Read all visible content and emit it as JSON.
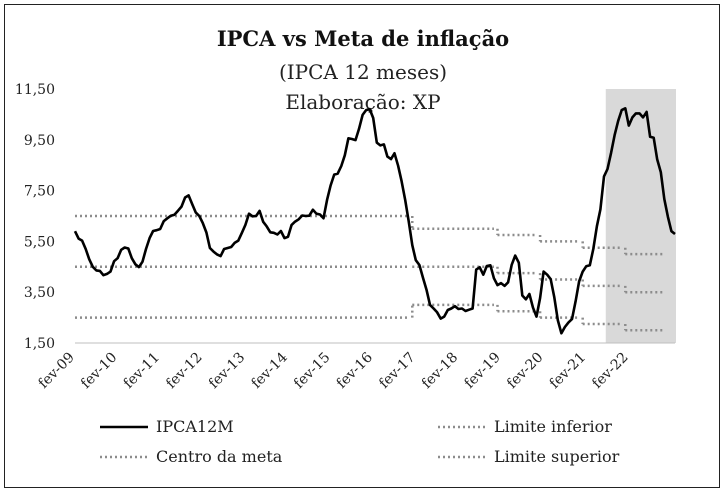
{
  "chart_data": {
    "type": "line",
    "title": "IPCA vs Meta de inflação",
    "subtitle": "(IPCA 12 meses)",
    "source": "Elaboração: XP",
    "xlabel": "",
    "ylabel": "",
    "ylim": [
      1.5,
      11.5
    ],
    "yticks": [
      "11,50",
      "9,50",
      "7,50",
      "5,50",
      "3,50",
      "1,50"
    ],
    "ytick_values": [
      11.5,
      9.5,
      7.5,
      5.5,
      3.5,
      1.5
    ],
    "xticks": [
      "fev-09",
      "fev-10",
      "fev-11",
      "fev-12",
      "fev-13",
      "fev-14",
      "fev-15",
      "fev-16",
      "fev-17",
      "fev-18",
      "fev-19",
      "fev-20",
      "fev-21",
      "fev-22"
    ],
    "x_start": "2009-02",
    "grid": false,
    "legend_position": "bottom",
    "shaded_region": {
      "from": "2021-08",
      "to": "2022-12",
      "color": "#d9d9d9"
    },
    "series": [
      {
        "name": "IPCA12M",
        "style": "solid",
        "color": "#000000",
        "values": [
          5.9,
          5.61,
          5.53,
          5.2,
          4.8,
          4.5,
          4.36,
          4.34,
          4.17,
          4.22,
          4.31,
          4.72,
          4.84,
          5.17,
          5.26,
          5.22,
          4.84,
          4.6,
          4.49,
          4.7,
          5.2,
          5.63,
          5.91,
          5.94,
          5.99,
          6.3,
          6.41,
          6.51,
          6.55,
          6.71,
          6.87,
          7.23,
          7.31,
          6.97,
          6.64,
          6.5,
          6.22,
          5.85,
          5.24,
          5.1,
          4.99,
          4.92,
          5.2,
          5.24,
          5.28,
          5.45,
          5.53,
          5.84,
          6.15,
          6.59,
          6.49,
          6.5,
          6.7,
          6.27,
          6.09,
          5.86,
          5.84,
          5.77,
          5.91,
          5.63,
          5.68,
          6.15,
          6.28,
          6.37,
          6.52,
          6.5,
          6.51,
          6.75,
          6.59,
          6.56,
          6.41,
          7.14,
          7.7,
          8.13,
          8.17,
          8.47,
          8.89,
          9.56,
          9.53,
          9.49,
          9.93,
          10.48,
          10.67,
          10.71,
          10.36,
          9.39,
          9.28,
          9.32,
          8.84,
          8.74,
          8.97,
          8.48,
          7.87,
          7.13,
          6.29,
          5.35,
          4.76,
          4.57,
          4.08,
          3.6,
          3.0,
          2.86,
          2.71,
          2.46,
          2.54,
          2.8,
          2.86,
          2.95,
          2.84,
          2.86,
          2.76,
          2.81,
          2.86,
          4.39,
          4.48,
          4.19,
          4.53,
          4.56,
          4.05,
          3.78,
          3.86,
          3.75,
          3.89,
          4.58,
          4.94,
          4.66,
          3.37,
          3.22,
          3.43,
          2.89,
          2.54,
          3.27,
          4.31,
          4.19,
          4.01,
          3.3,
          2.4,
          1.88,
          2.13,
          2.31,
          2.44,
          3.14,
          3.92,
          4.31,
          4.52,
          4.56,
          5.2,
          6.1,
          6.76,
          8.06,
          8.35,
          8.99,
          9.68,
          10.25,
          10.67,
          10.74,
          10.06,
          10.38,
          10.54,
          10.54,
          10.38,
          10.6,
          9.62,
          9.58,
          8.73,
          8.23,
          7.17,
          6.47,
          5.9,
          5.79
        ]
      },
      {
        "name": "Limite inferior",
        "style": "dotted",
        "color": "#8c8c8c",
        "segments": [
          {
            "from": "2009-02",
            "to": "2016-12",
            "value": 2.5
          },
          {
            "from": "2017-01",
            "to": "2018-12",
            "value": 3.0
          },
          {
            "from": "2019-01",
            "to": "2019-12",
            "value": 2.75
          },
          {
            "from": "2020-01",
            "to": "2020-12",
            "value": 2.5
          },
          {
            "from": "2021-01",
            "to": "2021-12",
            "value": 2.25
          },
          {
            "from": "2022-01",
            "to": "2022-12",
            "value": 2.0
          }
        ]
      },
      {
        "name": "Centro da meta",
        "style": "dotted",
        "color": "#8c8c8c",
        "segments": [
          {
            "from": "2009-02",
            "to": "2016-12",
            "value": 4.5
          },
          {
            "from": "2017-01",
            "to": "2018-12",
            "value": 4.5
          },
          {
            "from": "2019-01",
            "to": "2019-12",
            "value": 4.25
          },
          {
            "from": "2020-01",
            "to": "2020-12",
            "value": 4.0
          },
          {
            "from": "2021-01",
            "to": "2021-12",
            "value": 3.75
          },
          {
            "from": "2022-01",
            "to": "2022-12",
            "value": 3.5
          }
        ]
      },
      {
        "name": "Limite superior",
        "style": "dotted",
        "color": "#8c8c8c",
        "segments": [
          {
            "from": "2009-02",
            "to": "2016-12",
            "value": 6.5
          },
          {
            "from": "2017-01",
            "to": "2018-12",
            "value": 6.0
          },
          {
            "from": "2019-01",
            "to": "2019-12",
            "value": 5.75
          },
          {
            "from": "2020-01",
            "to": "2020-12",
            "value": 5.5
          },
          {
            "from": "2021-01",
            "to": "2021-12",
            "value": 5.25
          },
          {
            "from": "2022-01",
            "to": "2022-12",
            "value": 5.0
          }
        ]
      }
    ],
    "legend": [
      {
        "label": "IPCA12M",
        "style": "solid"
      },
      {
        "label": "Limite inferior",
        "style": "dotted"
      },
      {
        "label": "Centro da meta",
        "style": "dotted"
      },
      {
        "label": "Limite superior",
        "style": "dotted"
      }
    ]
  }
}
